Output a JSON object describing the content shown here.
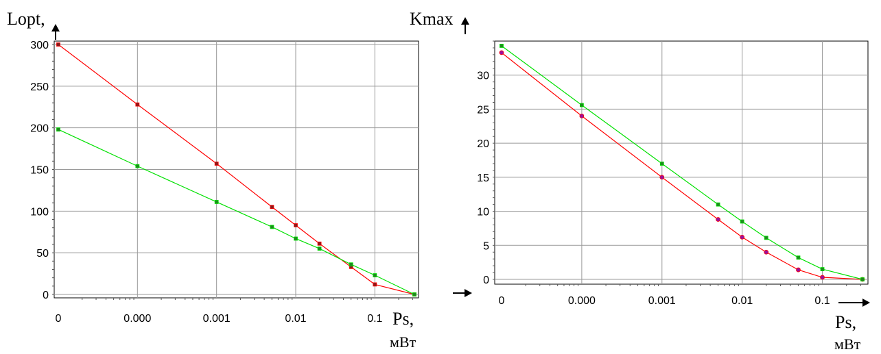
{
  "chart_data": [
    {
      "type": "line",
      "ylabel": "Lopt,",
      "xlabel": "Ps,",
      "xunit": "мВт",
      "x_tick_labels": [
        "0",
        "0.000",
        "0.001",
        "0.01",
        "0.1"
      ],
      "x_log_decades": [
        -5,
        -4,
        -3,
        -2,
        -1
      ],
      "xlim_log10": [
        -5,
        -0.5
      ],
      "ylim": [
        0,
        300
      ],
      "y_ticks": [
        0,
        50,
        100,
        150,
        200,
        250,
        300
      ],
      "grid": true,
      "series": [
        {
          "color": "#ff0000",
          "marker_color": "#8b1a1a",
          "marker": "square",
          "x_log10": [
            -5,
            -4,
            -3,
            -2.3,
            -2,
            -1.7,
            -1.3,
            -1,
            -0.5
          ],
          "values": [
            300,
            228,
            157,
            105,
            83,
            61,
            33,
            12,
            0
          ]
        },
        {
          "color": "#00e000",
          "marker_color": "#1f8a1f",
          "marker": "square",
          "x_log10": [
            -5,
            -4,
            -3,
            -2.3,
            -2,
            -1.7,
            -1.3,
            -1,
            -0.5
          ],
          "values": [
            198,
            154,
            111,
            81,
            67,
            55,
            36,
            23,
            0
          ]
        }
      ]
    },
    {
      "type": "line",
      "ylabel": "Kmax",
      "xlabel": "Ps,",
      "xunit": "мВт",
      "x_tick_labels": [
        "0",
        "0.000",
        "0.001",
        "0.01",
        "0.1"
      ],
      "x_log_decades": [
        -5,
        -4,
        -3,
        -2,
        -1
      ],
      "xlim_log10": [
        -5,
        -0.5
      ],
      "ylim": [
        0,
        35
      ],
      "y_ticks": [
        0,
        5,
        10,
        15,
        20,
        25,
        30
      ],
      "grid": true,
      "series": [
        {
          "color": "#ff0000",
          "marker_color": "#9c0f9c",
          "marker": "circle",
          "x_log10": [
            -5,
            -4,
            -3,
            -2.3,
            -2,
            -1.7,
            -1.3,
            -1,
            -0.5
          ],
          "values": [
            33.3,
            24,
            15,
            8.8,
            6.2,
            4,
            1.4,
            0.3,
            0
          ]
        },
        {
          "color": "#00e000",
          "marker_color": "#1f8a1f",
          "marker": "square",
          "x_log10": [
            -5,
            -4,
            -3,
            -2.3,
            -2,
            -1.7,
            -1.3,
            -1,
            -0.5
          ],
          "values": [
            34.3,
            25.6,
            17,
            11,
            8.5,
            6.1,
            3.2,
            1.5,
            0
          ]
        }
      ]
    }
  ]
}
